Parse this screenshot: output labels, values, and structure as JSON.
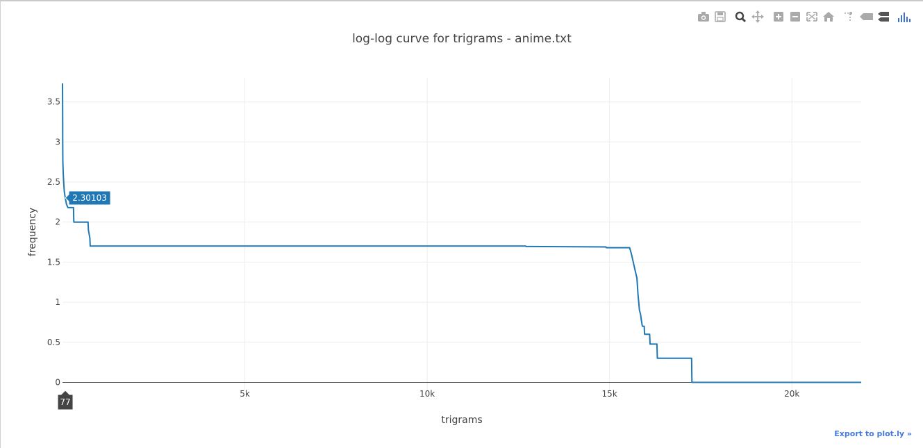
{
  "export_label": "Export to plot.ly »",
  "modebar": {
    "buttons": [
      {
        "name": "camera-icon"
      },
      {
        "name": "save-icon"
      },
      {
        "name": "zoom-icon"
      },
      {
        "name": "pan-icon"
      },
      {
        "name": "zoom-in-icon"
      },
      {
        "name": "zoom-out-icon"
      },
      {
        "name": "autoscale-icon"
      },
      {
        "name": "home-icon"
      },
      {
        "name": "spike-lines-icon"
      },
      {
        "name": "hover-closest-icon"
      },
      {
        "name": "hover-compare-icon"
      },
      {
        "name": "plotly-logo-icon"
      }
    ],
    "icon_color": "#aaaaaa",
    "logo_color": "#3f6fd8"
  },
  "chart_data": {
    "type": "line",
    "title": "log-log curve for trigrams - anime.txt",
    "xlabel": "trigrams",
    "ylabel": "frequency",
    "xlim": [
      0,
      21900
    ],
    "ylim": [
      -0.1,
      3.8
    ],
    "xticks": [
      {
        "value": 5000,
        "label": "5k"
      },
      {
        "value": 10000,
        "label": "10k"
      },
      {
        "value": 15000,
        "label": "15k"
      },
      {
        "value": 20000,
        "label": "20k"
      }
    ],
    "yticks": [
      {
        "value": 0,
        "label": "0"
      },
      {
        "value": 0.5,
        "label": "0.5"
      },
      {
        "value": 1,
        "label": "1"
      },
      {
        "value": 1.5,
        "label": "1.5"
      },
      {
        "value": 2,
        "label": "2"
      },
      {
        "value": 2.5,
        "label": "2.5"
      },
      {
        "value": 3,
        "label": "3"
      },
      {
        "value": 3.5,
        "label": "3.5"
      }
    ],
    "grid": true,
    "line_color": "#1f77b4",
    "series": [
      {
        "x": [
          0,
          3,
          5,
          10,
          20,
          35,
          50,
          77,
          110,
          150,
          220,
          300,
          310,
          700,
          710,
          750,
          760,
          12700,
          12710,
          14900,
          14910,
          15550,
          15600,
          15650,
          15700,
          15750,
          15780,
          15800,
          15820,
          15850,
          15870,
          15900,
          15950,
          15960,
          16100,
          16110,
          16300,
          16310,
          17250,
          17260,
          21900
        ],
        "y": [
          3.73,
          3.4,
          3.0,
          2.75,
          2.6,
          2.48,
          2.38,
          2.30103,
          2.22,
          2.18,
          2.18,
          2.18,
          2.0,
          2.0,
          1.9,
          1.8,
          1.7,
          1.7,
          1.695,
          1.69,
          1.68,
          1.68,
          1.6,
          1.5,
          1.4,
          1.3,
          1.1,
          1.0,
          0.9,
          0.85,
          0.78,
          0.7,
          0.7,
          0.6,
          0.6,
          0.477,
          0.477,
          0.301,
          0.301,
          0,
          0
        ]
      }
    ],
    "hover": {
      "x": 77,
      "y": 2.30103,
      "x_label": "77",
      "y_label": "2.30103",
      "label_color": "#1f77b4",
      "x_label_color": "#444444"
    }
  }
}
